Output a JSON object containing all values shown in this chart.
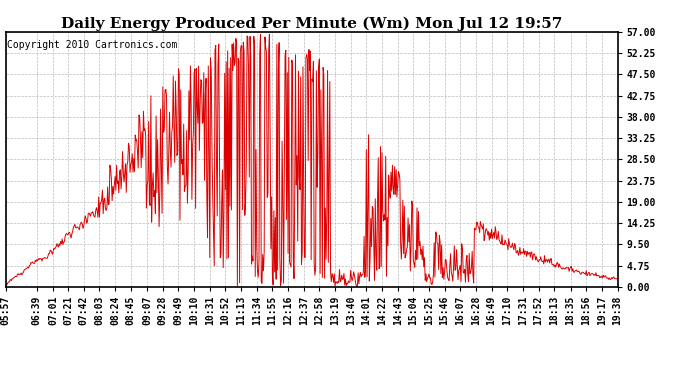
{
  "title": "Daily Energy Produced Per Minute (Wm) Mon Jul 12 19:57",
  "copyright": "Copyright 2010 Cartronics.com",
  "yticks": [
    0.0,
    4.75,
    9.5,
    14.25,
    19.0,
    23.75,
    28.5,
    33.25,
    38.0,
    42.75,
    47.5,
    52.25,
    57.0
  ],
  "ymax": 57.0,
  "ymin": 0.0,
  "line_color": "#dd0000",
  "bg_color": "#ffffff",
  "grid_color": "#bbbbbb",
  "border_color": "#000000",
  "title_fontsize": 11,
  "copyright_fontsize": 7,
  "tick_fontsize": 7,
  "xtick_labels": [
    "05:57",
    "06:39",
    "07:01",
    "07:21",
    "07:42",
    "08:03",
    "08:24",
    "08:45",
    "09:07",
    "09:28",
    "09:49",
    "10:10",
    "10:31",
    "10:52",
    "11:13",
    "11:34",
    "11:55",
    "12:16",
    "12:37",
    "12:58",
    "13:19",
    "13:40",
    "14:01",
    "14:22",
    "14:43",
    "15:04",
    "15:25",
    "15:46",
    "16:07",
    "16:28",
    "16:49",
    "17:10",
    "17:31",
    "17:52",
    "18:13",
    "18:35",
    "18:56",
    "19:17",
    "19:38"
  ],
  "start_time": "05:57",
  "end_time": "19:38"
}
